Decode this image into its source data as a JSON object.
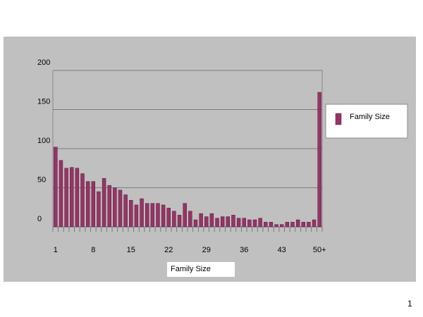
{
  "chart_data": {
    "type": "bar",
    "x_label": "Family Size",
    "categories": [
      "1",
      null,
      null,
      null,
      null,
      null,
      null,
      "8",
      null,
      null,
      null,
      null,
      null,
      null,
      "15",
      null,
      null,
      null,
      null,
      null,
      null,
      "22",
      null,
      null,
      null,
      null,
      null,
      null,
      "29",
      null,
      null,
      null,
      null,
      null,
      null,
      "36",
      null,
      null,
      null,
      null,
      null,
      null,
      "43",
      null,
      null,
      null,
      null,
      null,
      null,
      "50+"
    ],
    "series": [
      {
        "name": "Family Size",
        "color": "#993366",
        "values": [
          102,
          85,
          75,
          76,
          75,
          68,
          58,
          58,
          45,
          62,
          53,
          50,
          47,
          41,
          34,
          28,
          36,
          30,
          30,
          30,
          28,
          24,
          20,
          15,
          30,
          20,
          9,
          17,
          13,
          17,
          11,
          13,
          13,
          15,
          11,
          11,
          9,
          9,
          11,
          6,
          6,
          3,
          3,
          6,
          6,
          9,
          6,
          6,
          9,
          172
        ]
      }
    ],
    "ylim": [
      0,
      200
    ],
    "yticks": [
      0,
      50,
      100,
      150,
      200
    ],
    "grid": true,
    "legend": "right"
  },
  "page_number": "1"
}
